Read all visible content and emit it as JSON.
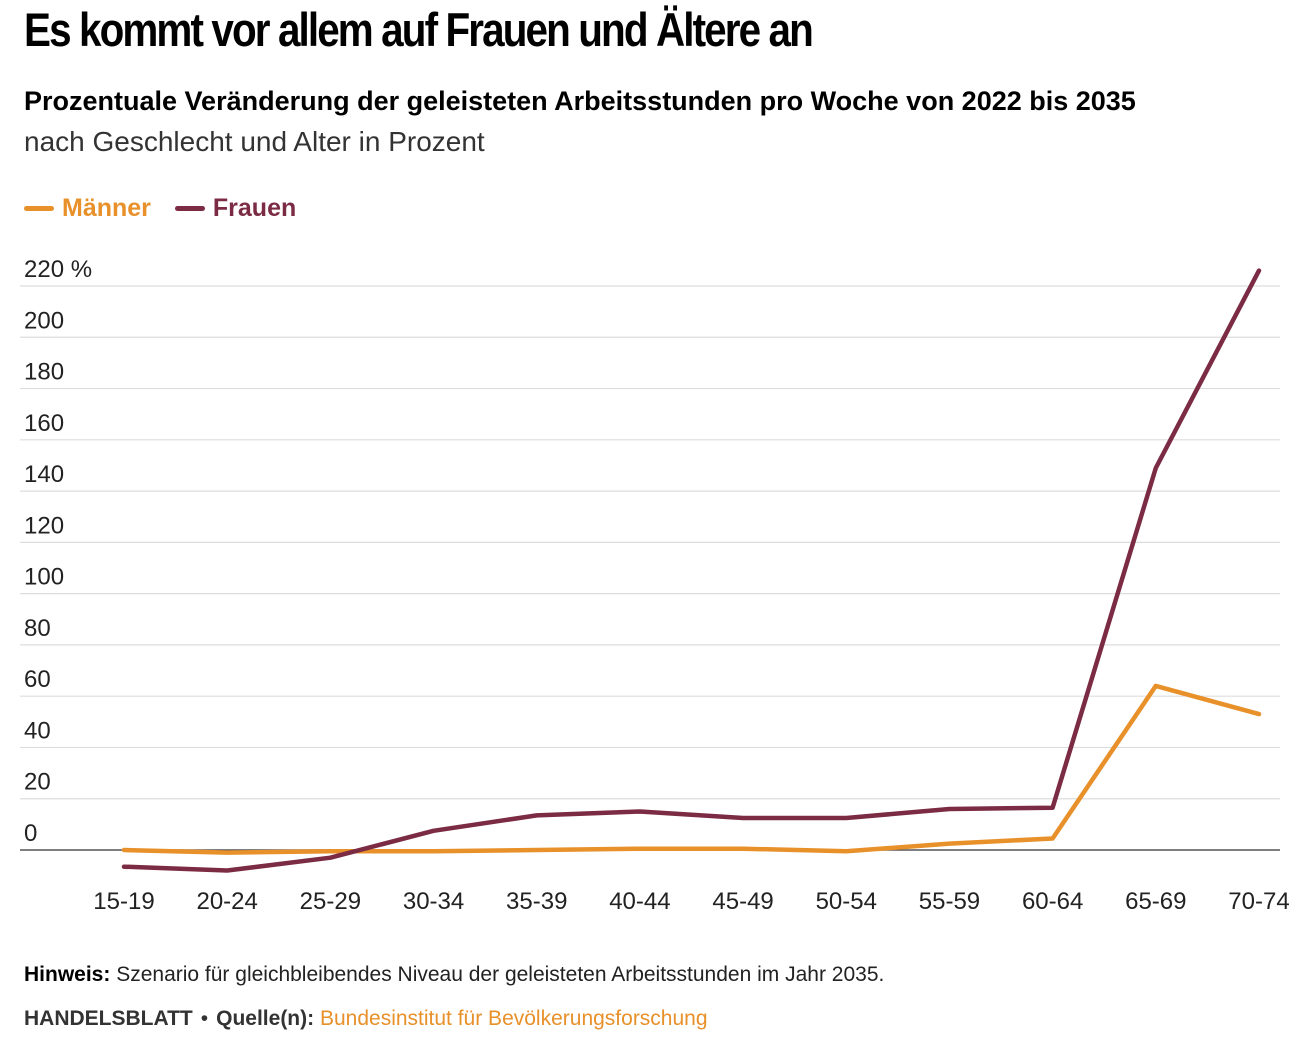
{
  "title": "Es kommt vor allem auf Frauen und Ältere an",
  "subtitle": "Prozentuale Veränderung der geleisteten Arbeitsstunden pro Woche von 2022 bis 2035",
  "subtitle2": "nach Geschlecht und Alter in Prozent",
  "note": {
    "label": "Hinweis:",
    "text": "Szenario für gleichbleibendes Niveau der geleisteten Arbeitsstunden im Jahr 2035."
  },
  "footer": {
    "brand": "HANDELSBLATT",
    "separator": "•",
    "source_label": "Quelle(n):",
    "source": "Bundesinstitut für Bevölkerungsforschung"
  },
  "colors": {
    "maenner": "#e8902a",
    "frauen": "#7b2b44",
    "grid": "#dddddd",
    "axis": "#555555"
  },
  "chart_data": {
    "type": "line",
    "title": "Prozentuale Veränderung der geleisteten Arbeitsstunden pro Woche von 2022 bis 2035",
    "xlabel": "",
    "ylabel": "",
    "categories": [
      "15-19",
      "20-24",
      "25-29",
      "30-34",
      "35-39",
      "40-44",
      "45-49",
      "50-54",
      "55-59",
      "60-64",
      "65-69",
      "70-74"
    ],
    "series": [
      {
        "name": "Männer",
        "color": "#e8902a",
        "values": [
          0,
          -1,
          -0.5,
          -0.5,
          0,
          0.5,
          0.5,
          -0.5,
          2.5,
          4.5,
          64,
          53
        ]
      },
      {
        "name": "Frauen",
        "color": "#7b2b44",
        "values": [
          -6.5,
          -8,
          -3,
          7.5,
          13.5,
          15,
          12.5,
          12.5,
          16,
          16.5,
          149,
          226
        ]
      }
    ],
    "ylim": [
      0,
      220
    ],
    "yticks": [
      0,
      20,
      40,
      60,
      80,
      100,
      120,
      140,
      160,
      180,
      200,
      220
    ],
    "ytick_labels": [
      "0",
      "20",
      "40",
      "60",
      "80",
      "100",
      "120",
      "140",
      "160",
      "180",
      "200",
      "220 %"
    ],
    "grid": true,
    "legend_position": "top-left"
  }
}
